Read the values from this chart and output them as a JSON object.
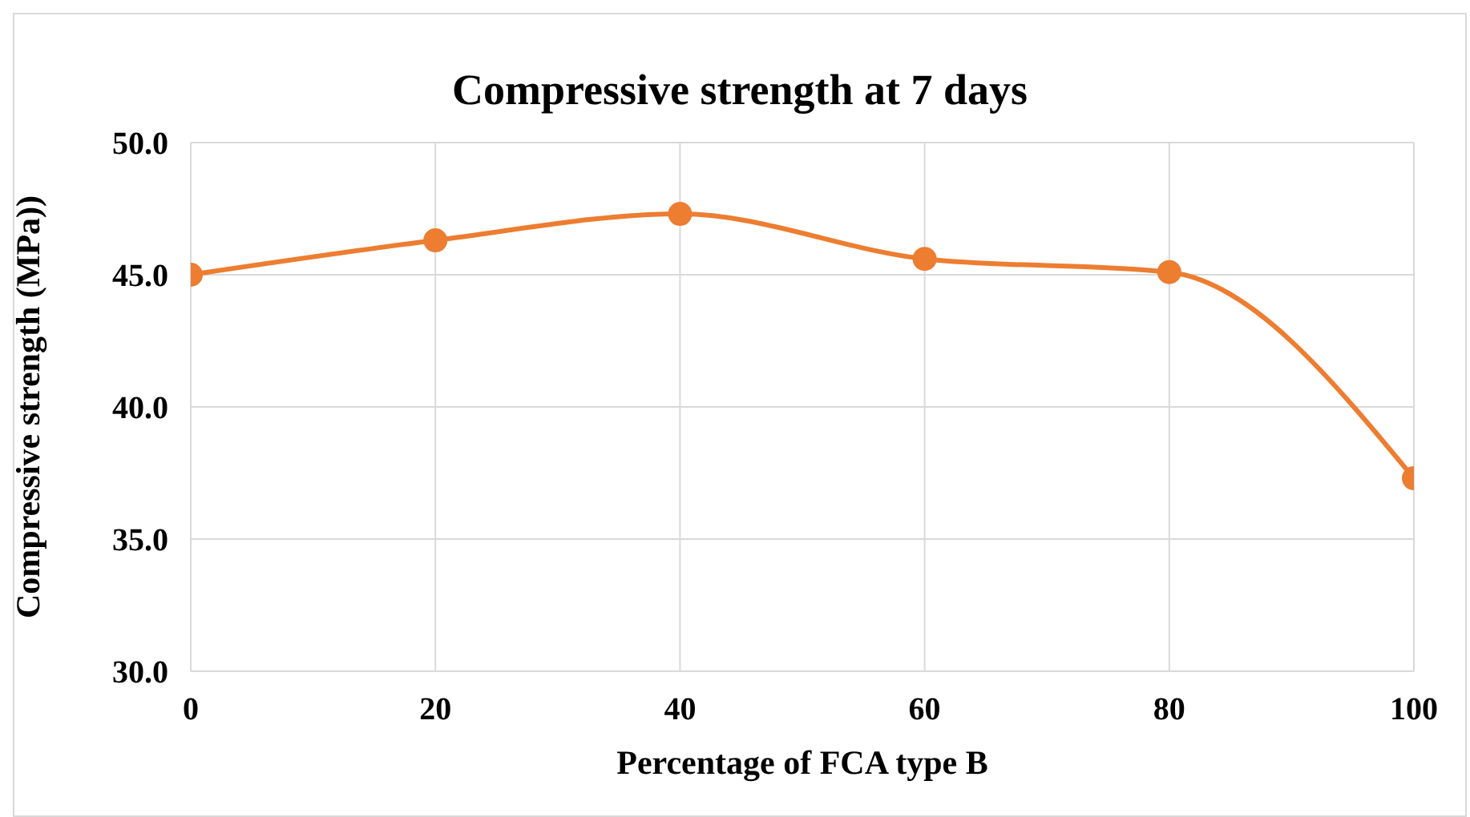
{
  "chart_data": {
    "type": "line",
    "title": "Compressive strength at 7 days",
    "xlabel": "Percentage of FCA type B",
    "ylabel": "Compressive strength (MPa))",
    "x": [
      0,
      20,
      40,
      60,
      80,
      100
    ],
    "series": [
      {
        "color": "#ed7d31",
        "values": [
          45.0,
          46.3,
          47.3,
          45.6,
          45.1,
          37.3
        ]
      }
    ],
    "xlim": [
      0,
      100
    ],
    "xticks": [
      0,
      20,
      40,
      60,
      80,
      100
    ],
    "ylim": [
      30,
      50
    ],
    "yticks": [
      {
        "value": 30,
        "label": "30.0"
      },
      {
        "value": 35,
        "label": "35.0"
      },
      {
        "value": 40,
        "label": "40.0"
      },
      {
        "value": 45,
        "label": "45.0"
      },
      {
        "value": 50,
        "label": "50.0"
      }
    ],
    "grid": true,
    "marker": "circle",
    "line_style": "solid"
  }
}
